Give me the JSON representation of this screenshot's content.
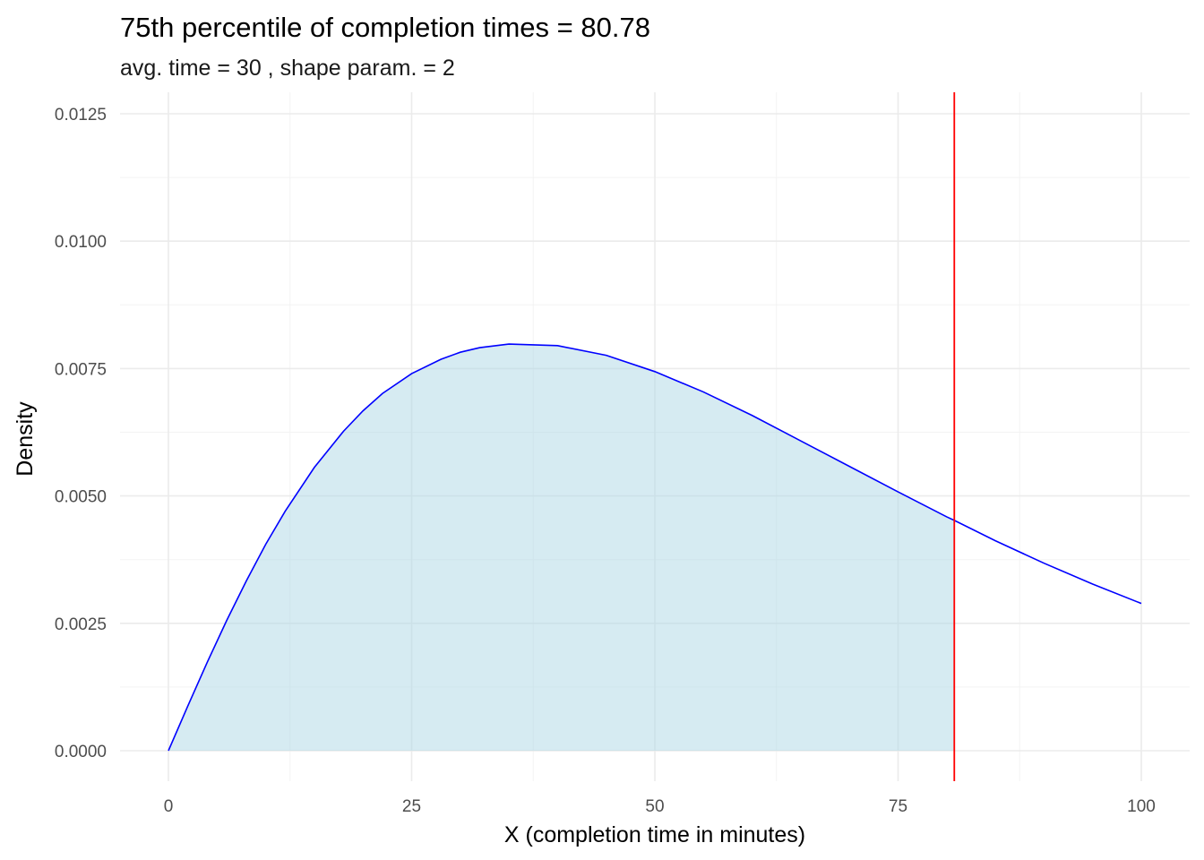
{
  "chart_data": {
    "type": "area",
    "title": "75th percentile of completion times =  80.78",
    "subtitle": "avg. time = 30 , shape param. = 2",
    "xlabel": "X (completion time in minutes)",
    "ylabel": "Density",
    "xlim": [
      0,
      100
    ],
    "ylim": [
      0,
      0.0125
    ],
    "x_ticks": [
      {
        "value": 0,
        "label": "0"
      },
      {
        "value": 25,
        "label": "25"
      },
      {
        "value": 50,
        "label": "50"
      },
      {
        "value": 75,
        "label": "75"
      },
      {
        "value": 100,
        "label": "100"
      }
    ],
    "y_ticks": [
      {
        "value": 0,
        "label": "0.0000"
      },
      {
        "value": 0.0025,
        "label": "0.0025"
      },
      {
        "value": 0.005,
        "label": "0.0050"
      },
      {
        "value": 0.0075,
        "label": "0.0075"
      },
      {
        "value": 0.01,
        "label": "0.0100"
      },
      {
        "value": 0.0125,
        "label": "0.0125"
      }
    ],
    "grid": true,
    "series": [
      {
        "x": [
          0,
          2,
          4,
          6,
          8,
          10,
          12,
          15,
          18,
          20,
          22,
          25,
          28,
          30,
          32,
          35,
          40,
          45,
          50,
          55,
          60,
          65,
          70,
          75,
          80,
          80.78,
          85,
          90,
          95,
          100
        ],
        "y": [
          0,
          0.00088,
          0.00174,
          0.00256,
          0.00333,
          0.00405,
          0.0047,
          0.00556,
          0.00627,
          0.00667,
          0.00701,
          0.0074,
          0.00768,
          0.00782,
          0.00791,
          0.00798,
          0.00795,
          0.00776,
          0.00744,
          0.00704,
          0.00658,
          0.00608,
          0.00558,
          0.00508,
          0.00459,
          0.00452,
          0.00412,
          0.00368,
          0.00327,
          0.00289
        ]
      }
    ],
    "shaded_region": {
      "from": 0,
      "to": 80.78
    },
    "vline": {
      "x": 80.78
    },
    "colors": {
      "line": "#0000ff",
      "fill": "#add8e6",
      "vline": "#ff0000"
    }
  }
}
